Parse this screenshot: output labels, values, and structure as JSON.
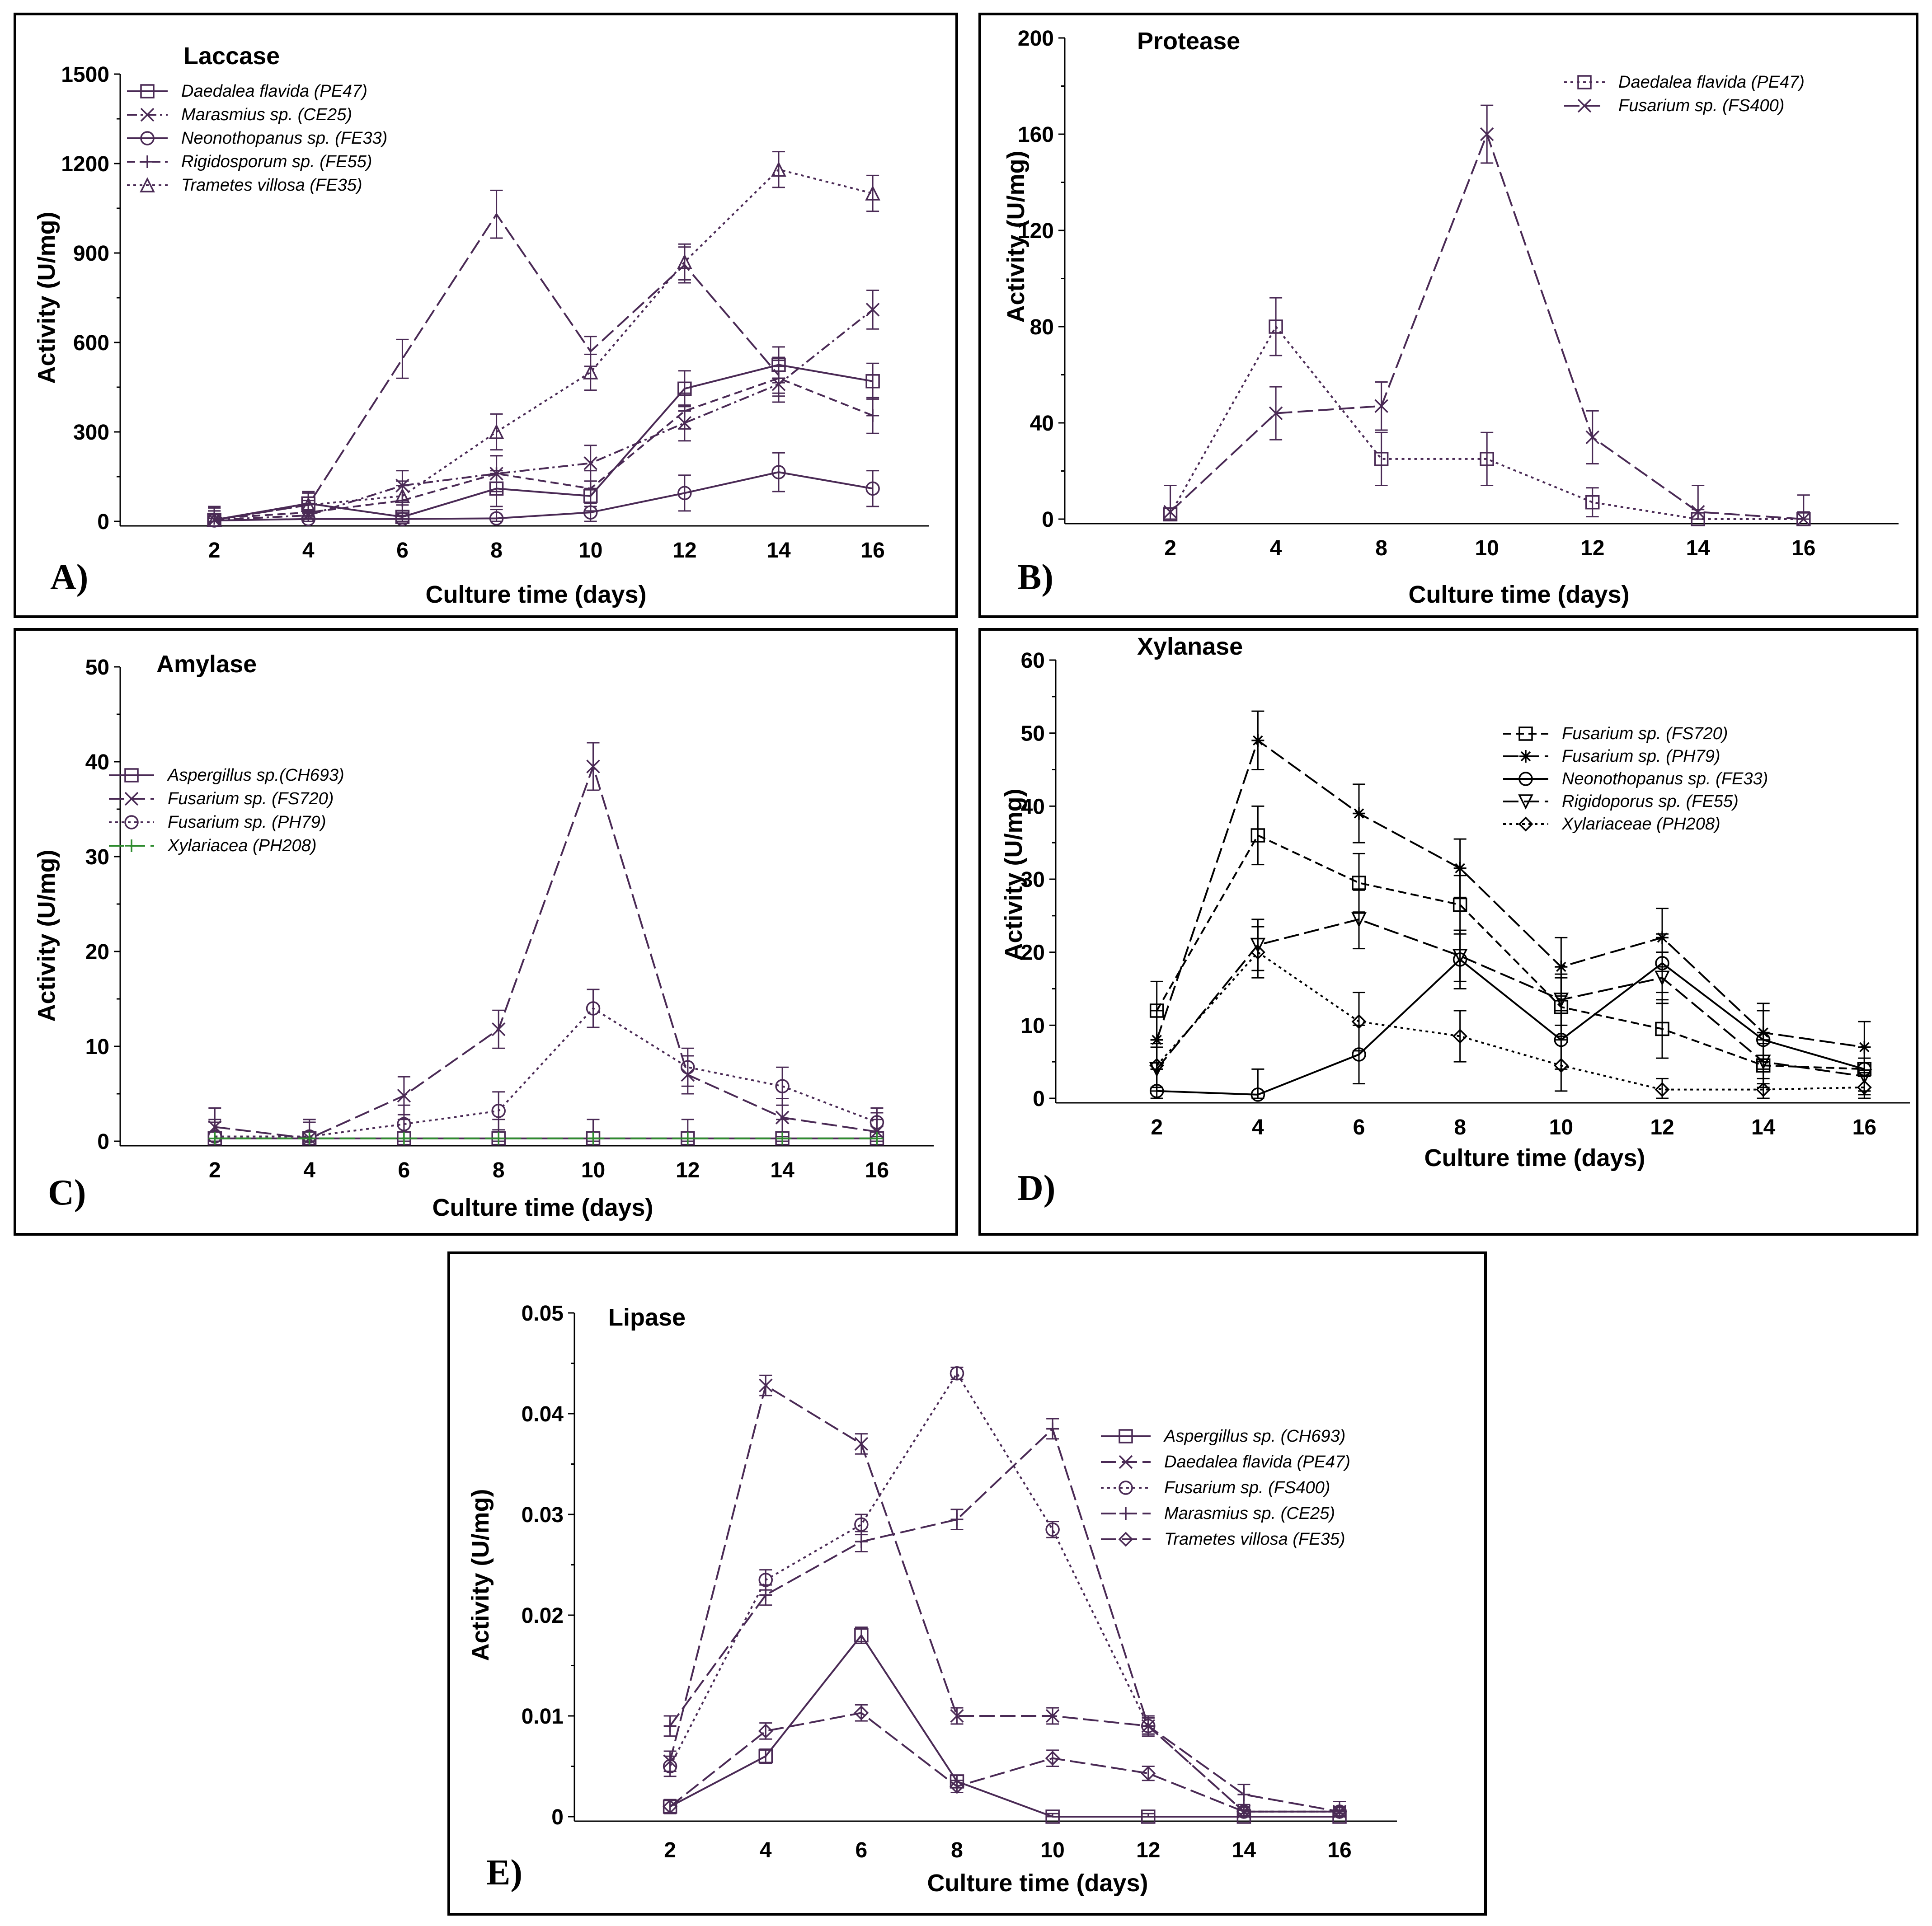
{
  "chart_data": [
    {
      "type": "line",
      "panel_label": "A)",
      "title": "Laccase",
      "xlabel": "Culture time (days)",
      "ylabel": "Activity (U/mg)",
      "x_ticks": [
        2,
        4,
        6,
        8,
        10,
        12,
        14,
        16
      ],
      "y_ticks": [
        0,
        300,
        600,
        900,
        1200,
        1500
      ],
      "y_tick_labels": [
        "0",
        "300",
        "600",
        "900",
        "1200",
        "1500"
      ],
      "xlim": [
        0,
        17.2
      ],
      "ylim": [
        0,
        1500
      ],
      "legend_position": "top-left",
      "series": [
        {
          "name": "Daedalea flavida (PE47)",
          "marker": "square",
          "dash": "solid",
          "color": "#4a2a55",
          "x": [
            2,
            4,
            6,
            8,
            10,
            12,
            14,
            16
          ],
          "values": [
            5,
            60,
            15,
            110,
            85,
            445,
            525,
            470
          ],
          "errors": [
            40,
            40,
            40,
            60,
            50,
            60,
            60,
            60
          ]
        },
        {
          "name": "Marasmius sp. (CE25)",
          "marker": "x",
          "dash": "dashdot",
          "color": "#4a2a55",
          "x": [
            2,
            4,
            6,
            8,
            10,
            12,
            14,
            16
          ],
          "values": [
            5,
            20,
            120,
            160,
            195,
            330,
            460,
            710
          ],
          "errors": [
            40,
            40,
            50,
            60,
            60,
            60,
            60,
            65
          ]
        },
        {
          "name": "Neonothopanus sp. (FE33)",
          "marker": "circle",
          "dash": "solid",
          "color": "#4a2a55",
          "x": [
            2,
            4,
            6,
            8,
            10,
            12,
            14,
            16
          ],
          "values": [
            3,
            8,
            8,
            10,
            30,
            95,
            165,
            110
          ],
          "errors": [
            20,
            20,
            20,
            30,
            30,
            60,
            65,
            60
          ]
        },
        {
          "name": "Rigidosporum sp. (FE55)",
          "marker": "plus",
          "dash": "dashed",
          "color": "#4a2a55",
          "x": [
            2,
            4,
            6,
            8,
            10,
            12,
            14,
            16
          ],
          "values": [
            10,
            30,
            70,
            160,
            110,
            370,
            480,
            355
          ],
          "errors": [
            40,
            40,
            50,
            60,
            60,
            60,
            60,
            60
          ]
        },
        {
          "name": "Trametes villosa (FE35)",
          "marker": "triangle",
          "dash": "dotted",
          "color": "#4a2a55",
          "x": [
            2,
            4,
            6,
            8,
            10,
            12,
            14,
            16
          ],
          "values": [
            5,
            55,
            85,
            300,
            500,
            870,
            1180,
            1100
          ],
          "errors": [
            30,
            40,
            50,
            60,
            60,
            60,
            60,
            60
          ]
        },
        {
          "name": "",
          "marker": "none",
          "dash": "longdash",
          "color": "#4a2a55",
          "x": [
            2,
            4,
            6,
            8,
            10,
            12,
            14
          ],
          "values": [
            5,
            55,
            545,
            1030,
            570,
            860,
            490
          ],
          "errors": [
            30,
            40,
            65,
            80,
            50,
            60,
            60
          ]
        }
      ]
    },
    {
      "type": "line",
      "panel_label": "B)",
      "title": "Protease",
      "xlabel": "Culture time (days)",
      "ylabel": "Activity (U/mg)",
      "x_ticks": [
        2,
        4,
        8,
        10,
        12,
        14,
        16
      ],
      "y_ticks": [
        0,
        40,
        80,
        120,
        160,
        200
      ],
      "y_tick_labels": [
        "0",
        "40",
        "80",
        "120",
        "160",
        "200"
      ],
      "xlim": [
        0,
        7.9
      ],
      "ylim": [
        0,
        200
      ],
      "legend_position": "top-right",
      "series": [
        {
          "name": "Daedalea flavida (PE47)",
          "marker": "square",
          "dash": "dotted",
          "color": "#4a2a55",
          "x": [
            1,
            2,
            3,
            4,
            5,
            6,
            7
          ],
          "values": [
            2,
            80,
            25,
            25,
            7,
            0,
            0
          ],
          "errors": [
            12,
            12,
            11,
            11,
            6,
            4,
            3
          ]
        },
        {
          "name": "Fusarium sp. (FS400)",
          "marker": "x",
          "dash": "longdash",
          "color": "#4a2a55",
          "x": [
            1,
            2,
            3,
            4,
            5,
            6,
            7
          ],
          "values": [
            3,
            44,
            47,
            160,
            34,
            3,
            0
          ],
          "errors": [
            11,
            11,
            10,
            12,
            11,
            11,
            10
          ]
        }
      ]
    },
    {
      "type": "line",
      "panel_label": "C)",
      "title": "Amylase",
      "xlabel": "Culture time (days)",
      "ylabel": "Activity (U/mg)",
      "x_ticks": [
        2,
        4,
        6,
        8,
        10,
        12,
        14,
        16
      ],
      "y_ticks": [
        0,
        10,
        20,
        30,
        40,
        50
      ],
      "y_tick_labels": [
        "0",
        "10",
        "20",
        "30",
        "40",
        "50"
      ],
      "xlim": [
        0,
        17.2
      ],
      "ylim": [
        0,
        50
      ],
      "legend_position": "left",
      "series": [
        {
          "name": "Aspergillus sp.(CH693)",
          "marker": "square",
          "dash": "solid",
          "color": "#4a2a55",
          "x": [
            2,
            4,
            6,
            8,
            10,
            12,
            14,
            16
          ],
          "values": [
            0.3,
            0.3,
            0.3,
            0.3,
            0.3,
            0.3,
            0.3,
            0.3
          ],
          "errors": [
            2,
            2,
            2,
            2,
            2,
            2,
            2,
            2
          ]
        },
        {
          "name": "Fusarium sp. (FS720)",
          "marker": "x",
          "dash": "longdash",
          "color": "#4a2a55",
          "x": [
            2,
            4,
            6,
            8,
            10,
            12,
            14,
            16
          ],
          "values": [
            1.5,
            0.3,
            4.8,
            11.8,
            39.5,
            7,
            2.5,
            1
          ],
          "errors": [
            2,
            2,
            2,
            2,
            2.5,
            2,
            2,
            2
          ]
        },
        {
          "name": "Fusarium sp. (PH79)",
          "marker": "circle",
          "dash": "dotted",
          "color": "#4a2a55",
          "x": [
            2,
            4,
            6,
            8,
            10,
            12,
            14,
            16
          ],
          "values": [
            0.5,
            0.5,
            1.8,
            3.2,
            14,
            7.8,
            5.8,
            2
          ],
          "errors": [
            1.5,
            1.5,
            2,
            2,
            2,
            2,
            2,
            1.5
          ]
        },
        {
          "name": "Xylariacea (PH208)",
          "marker": "plus",
          "dash": "longdash",
          "color": "#2e8b2e",
          "x": [
            2,
            4,
            6,
            8,
            10,
            12,
            14,
            16
          ],
          "values": [
            0.3,
            0.3,
            0.3,
            0.3,
            0.3,
            0.3,
            0.3,
            0.3
          ],
          "errors": [
            0,
            0,
            0,
            0,
            0,
            0,
            0,
            0
          ]
        }
      ]
    },
    {
      "type": "line",
      "panel_label": "D)",
      "title": "Xylanase",
      "xlabel": "Culture time (days)",
      "ylabel": "Activity (U/mg)",
      "x_ticks": [
        2,
        4,
        6,
        8,
        10,
        12,
        14,
        16
      ],
      "y_ticks": [
        0,
        10,
        20,
        30,
        40,
        50,
        60
      ],
      "y_tick_labels": [
        "0",
        "10",
        "20",
        "30",
        "40",
        "50",
        "60"
      ],
      "xlim": [
        0,
        16.9
      ],
      "ylim": [
        0,
        60
      ],
      "legend_position": "right",
      "series": [
        {
          "name": "Fusarium sp. (FS720)",
          "marker": "square",
          "dash": "dashed",
          "color": "#000000",
          "x": [
            2,
            4,
            6,
            8,
            10,
            12,
            14,
            16
          ],
          "values": [
            12,
            36,
            29.5,
            26.5,
            12.5,
            9.5,
            4.5,
            4
          ],
          "errors": [
            4,
            4,
            4,
            4,
            4,
            4,
            3,
            3
          ]
        },
        {
          "name": "Fusarium sp. (PH79)",
          "marker": "asterisk",
          "dash": "longdash",
          "color": "#000000",
          "x": [
            2,
            4,
            6,
            8,
            10,
            12,
            14,
            16
          ],
          "values": [
            8,
            49,
            39,
            31.5,
            18,
            22,
            9,
            7
          ],
          "errors": [
            4,
            4,
            4,
            4,
            4,
            4,
            4,
            3.5
          ]
        },
        {
          "name": "Neonothopanus sp. (FE33)",
          "marker": "circle",
          "dash": "solid",
          "color": "#000000",
          "x": [
            2,
            4,
            6,
            8,
            10,
            12,
            14,
            16
          ],
          "values": [
            1,
            0.5,
            6,
            19,
            8,
            18.5,
            8,
            4
          ],
          "errors": [
            3,
            3.5,
            4,
            4,
            4,
            4,
            4,
            3
          ]
        },
        {
          "name": "Rigidoporus sp. (FE55)",
          "marker": "triangle-down",
          "dash": "longdash",
          "color": "#000000",
          "x": [
            2,
            4,
            6,
            8,
            10,
            12,
            14,
            16
          ],
          "values": [
            4,
            21,
            24.5,
            19.5,
            13.5,
            16.5,
            5,
            3
          ],
          "errors": [
            3,
            3.5,
            4,
            3.5,
            3.5,
            3.5,
            3,
            2.5
          ]
        },
        {
          "name": "Xylariaceae (PH208)",
          "marker": "diamond",
          "dash": "dotted",
          "color": "#000000",
          "x": [
            2,
            4,
            6,
            8,
            10,
            12,
            14,
            16
          ],
          "values": [
            4.5,
            20,
            10.5,
            8.5,
            4.5,
            1.2,
            1.2,
            1.5
          ],
          "errors": [
            3,
            3.5,
            4,
            3.5,
            3.5,
            1.5,
            1.5,
            1.5
          ]
        }
      ]
    },
    {
      "type": "line",
      "panel_label": "E)",
      "title": "Lipase",
      "xlabel": "Culture time (days)",
      "ylabel": "Activity (U/mg)",
      "x_ticks": [
        2,
        4,
        6,
        8,
        10,
        12,
        14,
        16
      ],
      "y_ticks": [
        0,
        0.01,
        0.02,
        0.03,
        0.04,
        0.05
      ],
      "y_tick_labels": [
        "0",
        "0.01",
        "0.02",
        "0.03",
        "0.04",
        "0.05"
      ],
      "xlim": [
        0,
        17.2
      ],
      "ylim": [
        0,
        0.05
      ],
      "legend_position": "right",
      "series": [
        {
          "name": "Aspergillus sp. (CH693)",
          "marker": "square",
          "dash": "solid",
          "color": "#4a2a55",
          "x": [
            2,
            4,
            6,
            8,
            10,
            12,
            14,
            16
          ],
          "values": [
            0.001,
            0.006,
            0.018,
            0.0035,
            0,
            0,
            0,
            0
          ],
          "errors": [
            0.0007,
            0.0007,
            0.0008,
            0.0006,
            0.0003,
            0.0003,
            0.0003,
            0.0003
          ]
        },
        {
          "name": "Daedalea flavida (PE47)",
          "marker": "x",
          "dash": "longdash",
          "color": "#4a2a55",
          "x": [
            2,
            4,
            6,
            8,
            10,
            12,
            14,
            16
          ],
          "values": [
            0.0055,
            0.0428,
            0.037,
            0.01,
            0.01,
            0.009,
            0.0005,
            0.0005
          ],
          "errors": [
            0.001,
            0.001,
            0.001,
            0.0008,
            0.0008,
            0.0008,
            0.0005,
            0.0005
          ]
        },
        {
          "name": "Fusarium sp. (FS400)",
          "marker": "circle",
          "dash": "dotted",
          "color": "#4a2a55",
          "x": [
            2,
            4,
            6,
            8,
            10,
            12,
            14,
            16
          ],
          "values": [
            0.005,
            0.0235,
            0.029,
            0.044,
            0.0285,
            0.009,
            0.0005,
            0.0005
          ],
          "errors": [
            0.001,
            0.001,
            0.001,
            0.0006,
            0.0008,
            0.0008,
            0.0005,
            0.0005
          ]
        },
        {
          "name": "Marasmius sp. (CE25)",
          "marker": "plus",
          "dash": "longdash",
          "color": "#4a2a55",
          "x": [
            2,
            4,
            6,
            8,
            10,
            12,
            14,
            16
          ],
          "values": [
            0.009,
            0.022,
            0.0273,
            0.0295,
            0.0385,
            0.009,
            0.0022,
            0.0005
          ],
          "errors": [
            0.001,
            0.001,
            0.001,
            0.001,
            0.001,
            0.001,
            0.001,
            0.001
          ]
        },
        {
          "name": "Trametes villosa (FE35)",
          "marker": "diamond",
          "dash": "longdash",
          "color": "#4a2a55",
          "x": [
            2,
            4,
            6,
            8,
            10,
            12,
            14,
            16
          ],
          "values": [
            0.001,
            0.0085,
            0.0103,
            0.003,
            0.0058,
            0.0043,
            0.0005,
            0.0005
          ],
          "errors": [
            0.0006,
            0.0008,
            0.0008,
            0.0006,
            0.0008,
            0.0007,
            0.0004,
            0.0004
          ]
        }
      ]
    }
  ]
}
